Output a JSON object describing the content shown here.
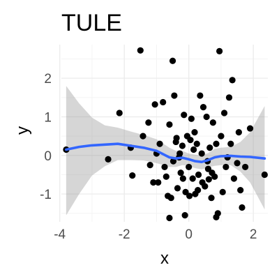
{
  "chart_data": {
    "type": "scatter",
    "title": "TULE",
    "xlabel": "x",
    "ylabel": "y",
    "xlim": [
      -3.95,
      2.45
    ],
    "ylim": [
      -1.72,
      2.87
    ],
    "x_ticks": [
      -4,
      -2,
      0,
      2
    ],
    "x_tick_labels": [
      "-4",
      "-2",
      "0",
      "2"
    ],
    "y_ticks": [
      -1,
      0,
      1,
      2
    ],
    "y_tick_labels": [
      "-1",
      "0",
      "1",
      "2"
    ],
    "x_minor_ticks": [
      -3,
      -1,
      1
    ],
    "y_minor_ticks": [
      -1.5,
      -0.5,
      0.5,
      1.5,
      2.5
    ],
    "grid": true,
    "legend": "none",
    "colors": {
      "points": "#000000",
      "smooth_line": "#3366FF",
      "ribbon": "#999999",
      "grid_major": "#ebebeb",
      "grid_minor": "#f4f4f4"
    },
    "points": [
      {
        "x": -3.8,
        "y": 0.15
      },
      {
        "x": -2.5,
        "y": -0.1
      },
      {
        "x": -2.15,
        "y": 1.1
      },
      {
        "x": -1.8,
        "y": 0.2
      },
      {
        "x": -1.75,
        "y": -0.52
      },
      {
        "x": -1.5,
        "y": 2.72
      },
      {
        "x": -1.42,
        "y": 0.5
      },
      {
        "x": -1.25,
        "y": 0.85
      },
      {
        "x": -1.2,
        "y": -0.25
      },
      {
        "x": -1.05,
        "y": 1.32
      },
      {
        "x": -1.0,
        "y": 0.05
      },
      {
        "x": -0.95,
        "y": -0.7
      },
      {
        "x": -0.8,
        "y": 1.38
      },
      {
        "x": -0.75,
        "y": -0.3
      },
      {
        "x": -0.7,
        "y": -0.55
      },
      {
        "x": -0.6,
        "y": 0.8
      },
      {
        "x": -0.55,
        "y": -1.1
      },
      {
        "x": -0.5,
        "y": 2.45
      },
      {
        "x": -0.48,
        "y": -0.15
      },
      {
        "x": -0.45,
        "y": 1.55
      },
      {
        "x": -0.4,
        "y": 0.35
      },
      {
        "x": -0.35,
        "y": -0.85
      },
      {
        "x": -0.3,
        "y": -0.05
      },
      {
        "x": -0.25,
        "y": -0.45
      },
      {
        "x": -0.2,
        "y": 0.25
      },
      {
        "x": -0.15,
        "y": 1.05
      },
      {
        "x": -0.1,
        "y": -0.95
      },
      {
        "x": -0.05,
        "y": 0.5
      },
      {
        "x": 0.0,
        "y": -0.3
      },
      {
        "x": 0.05,
        "y": 0.4
      },
      {
        "x": 0.08,
        "y": 0.95
      },
      {
        "x": 0.12,
        "y": -0.6
      },
      {
        "x": 0.15,
        "y": 0.15
      },
      {
        "x": 0.2,
        "y": -1.0
      },
      {
        "x": 0.25,
        "y": 0.3
      },
      {
        "x": 0.3,
        "y": -0.5
      },
      {
        "x": 0.35,
        "y": 1.55
      },
      {
        "x": 0.4,
        "y": 0.05
      },
      {
        "x": 0.45,
        "y": 1.25
      },
      {
        "x": 0.5,
        "y": -0.8
      },
      {
        "x": 0.55,
        "y": 1.0
      },
      {
        "x": 0.6,
        "y": -0.35
      },
      {
        "x": 0.65,
        "y": 0.2
      },
      {
        "x": 0.7,
        "y": -1.1
      },
      {
        "x": 0.75,
        "y": 0.85
      },
      {
        "x": 0.8,
        "y": -0.55
      },
      {
        "x": 0.85,
        "y": 0.3
      },
      {
        "x": 0.9,
        "y": -1.5
      },
      {
        "x": 0.95,
        "y": 2.7
      },
      {
        "x": 1.0,
        "y": 0.5
      },
      {
        "x": 1.05,
        "y": -0.95
      },
      {
        "x": 1.1,
        "y": 1.1
      },
      {
        "x": 1.15,
        "y": -0.3
      },
      {
        "x": 1.25,
        "y": 1.5
      },
      {
        "x": 1.3,
        "y": 0.3
      },
      {
        "x": 1.35,
        "y": 1.95
      },
      {
        "x": 1.4,
        "y": -0.6
      },
      {
        "x": 1.5,
        "y": -0.2
      },
      {
        "x": 1.55,
        "y": 0.6
      },
      {
        "x": 1.6,
        "y": -0.9
      },
      {
        "x": 1.65,
        "y": -1.35
      },
      {
        "x": 1.75,
        "y": -0.3
      },
      {
        "x": 1.9,
        "y": 0.7
      },
      {
        "x": 2.35,
        "y": -0.5
      },
      {
        "x": -0.65,
        "y": -1.05
      },
      {
        "x": -0.28,
        "y": 0.05
      },
      {
        "x": 0.02,
        "y": -1.05
      },
      {
        "x": 0.18,
        "y": 0.6
      },
      {
        "x": 0.42,
        "y": -0.7
      },
      {
        "x": 0.58,
        "y": -0.15
      },
      {
        "x": -0.9,
        "y": 0.3
      },
      {
        "x": -1.1,
        "y": -0.7
      },
      {
        "x": -0.38,
        "y": 0.45
      },
      {
        "x": 0.28,
        "y": -0.9
      },
      {
        "x": 0.72,
        "y": -0.45
      },
      {
        "x": 1.2,
        "y": -0.05
      },
      {
        "x": -0.6,
        "y": -1.62
      },
      {
        "x": -0.12,
        "y": -1.55
      },
      {
        "x": 0.85,
        "y": -1.6
      },
      {
        "x": 0.62,
        "y": -0.62
      },
      {
        "x": -0.18,
        "y": -0.6
      }
    ],
    "smooth_line": [
      {
        "x": -3.8,
        "y": 0.15
      },
      {
        "x": -3.4,
        "y": 0.22
      },
      {
        "x": -3.0,
        "y": 0.26
      },
      {
        "x": -2.6,
        "y": 0.28
      },
      {
        "x": -2.2,
        "y": 0.3
      },
      {
        "x": -1.8,
        "y": 0.25
      },
      {
        "x": -1.4,
        "y": 0.2
      },
      {
        "x": -1.0,
        "y": 0.12
      },
      {
        "x": -0.6,
        "y": -0.05
      },
      {
        "x": -0.4,
        "y": -0.08
      },
      {
        "x": -0.2,
        "y": -0.06
      },
      {
        "x": 0.0,
        "y": -0.1
      },
      {
        "x": 0.2,
        "y": -0.15
      },
      {
        "x": 0.4,
        "y": -0.17
      },
      {
        "x": 0.6,
        "y": -0.12
      },
      {
        "x": 0.8,
        "y": -0.05
      },
      {
        "x": 1.0,
        "y": -0.02
      },
      {
        "x": 1.3,
        "y": -0.01
      },
      {
        "x": 1.6,
        "y": -0.03
      },
      {
        "x": 1.9,
        "y": -0.04
      },
      {
        "x": 2.35,
        "y": -0.08
      }
    ],
    "ribbon_upper": [
      {
        "x": -3.8,
        "y": 1.8
      },
      {
        "x": -3.4,
        "y": 1.35
      },
      {
        "x": -3.0,
        "y": 0.98
      },
      {
        "x": -2.6,
        "y": 0.78
      },
      {
        "x": -2.2,
        "y": 0.72
      },
      {
        "x": -1.8,
        "y": 0.62
      },
      {
        "x": -1.4,
        "y": 0.53
      },
      {
        "x": -1.0,
        "y": 0.42
      },
      {
        "x": -0.6,
        "y": 0.2
      },
      {
        "x": -0.4,
        "y": 0.12
      },
      {
        "x": -0.2,
        "y": 0.12
      },
      {
        "x": 0.0,
        "y": 0.05
      },
      {
        "x": 0.2,
        "y": 0.02
      },
      {
        "x": 0.4,
        "y": 0.0
      },
      {
        "x": 0.6,
        "y": 0.06
      },
      {
        "x": 0.8,
        "y": 0.17
      },
      {
        "x": 1.0,
        "y": 0.2
      },
      {
        "x": 1.3,
        "y": 0.22
      },
      {
        "x": 1.6,
        "y": 0.35
      },
      {
        "x": 1.9,
        "y": 0.6
      },
      {
        "x": 2.35,
        "y": 1.28
      }
    ],
    "ribbon_lower": [
      {
        "x": -3.8,
        "y": -1.55
      },
      {
        "x": -3.4,
        "y": -1.0
      },
      {
        "x": -3.0,
        "y": -0.52
      },
      {
        "x": -2.6,
        "y": -0.28
      },
      {
        "x": -2.2,
        "y": -0.12
      },
      {
        "x": -1.8,
        "y": -0.12
      },
      {
        "x": -1.4,
        "y": -0.13
      },
      {
        "x": -1.0,
        "y": -0.2
      },
      {
        "x": -0.6,
        "y": -0.3
      },
      {
        "x": -0.4,
        "y": -0.3
      },
      {
        "x": -0.2,
        "y": -0.25
      },
      {
        "x": 0.0,
        "y": -0.27
      },
      {
        "x": 0.2,
        "y": -0.33
      },
      {
        "x": 0.4,
        "y": -0.36
      },
      {
        "x": 0.6,
        "y": -0.31
      },
      {
        "x": 0.8,
        "y": -0.27
      },
      {
        "x": 1.0,
        "y": -0.25
      },
      {
        "x": 1.3,
        "y": -0.25
      },
      {
        "x": 1.6,
        "y": -0.42
      },
      {
        "x": 1.9,
        "y": -0.7
      },
      {
        "x": 2.35,
        "y": -1.4
      }
    ]
  }
}
